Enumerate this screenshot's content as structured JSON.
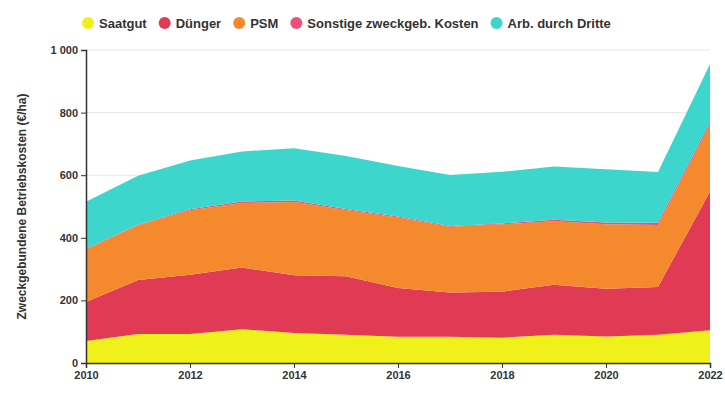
{
  "chart_data": {
    "type": "area",
    "stacked": true,
    "grid": true,
    "legend": "top",
    "y_label": "Zweckgebundene Betriebskosten (€/ha)",
    "x": [
      2010,
      2011,
      2012,
      2013,
      2014,
      2015,
      2016,
      2017,
      2018,
      2019,
      2020,
      2021,
      2022
    ],
    "xlim": [
      2010,
      2022
    ],
    "xticks": [
      2010,
      2012,
      2014,
      2016,
      2018,
      2020,
      2022
    ],
    "ylim": [
      0,
      1000
    ],
    "yticks": [
      0,
      200,
      400,
      600,
      800,
      {
        "value": 1000,
        "label": "1 000"
      }
    ],
    "series": [
      {
        "name": "Saatgut",
        "color": "#f0f01a",
        "values": [
          70,
          93,
          93,
          108,
          96,
          90,
          84,
          84,
          81,
          90,
          85,
          90,
          105
        ]
      },
      {
        "name": "Dünger",
        "color": "#e03a55",
        "values": [
          125,
          172,
          189,
          197,
          184,
          187,
          156,
          141,
          147,
          160,
          152,
          153,
          443
        ]
      },
      {
        "name": "PSM",
        "color": "#f5892e",
        "values": [
          168,
          175,
          206,
          206,
          234,
          212,
          225,
          210,
          215,
          203,
          206,
          198,
          212
        ]
      },
      {
        "name": "Sonstige zweckgeb. Kosten",
        "color": "#f05078",
        "values": [
          2,
          2,
          3,
          5,
          5,
          3,
          3,
          3,
          3,
          5,
          6,
          7,
          8
        ]
      },
      {
        "name": "Arb. durch Dritte",
        "color": "#3dd6cc",
        "values": [
          150,
          156,
          156,
          160,
          167,
          169,
          161,
          163,
          165,
          170,
          170,
          162,
          187
        ]
      }
    ]
  }
}
